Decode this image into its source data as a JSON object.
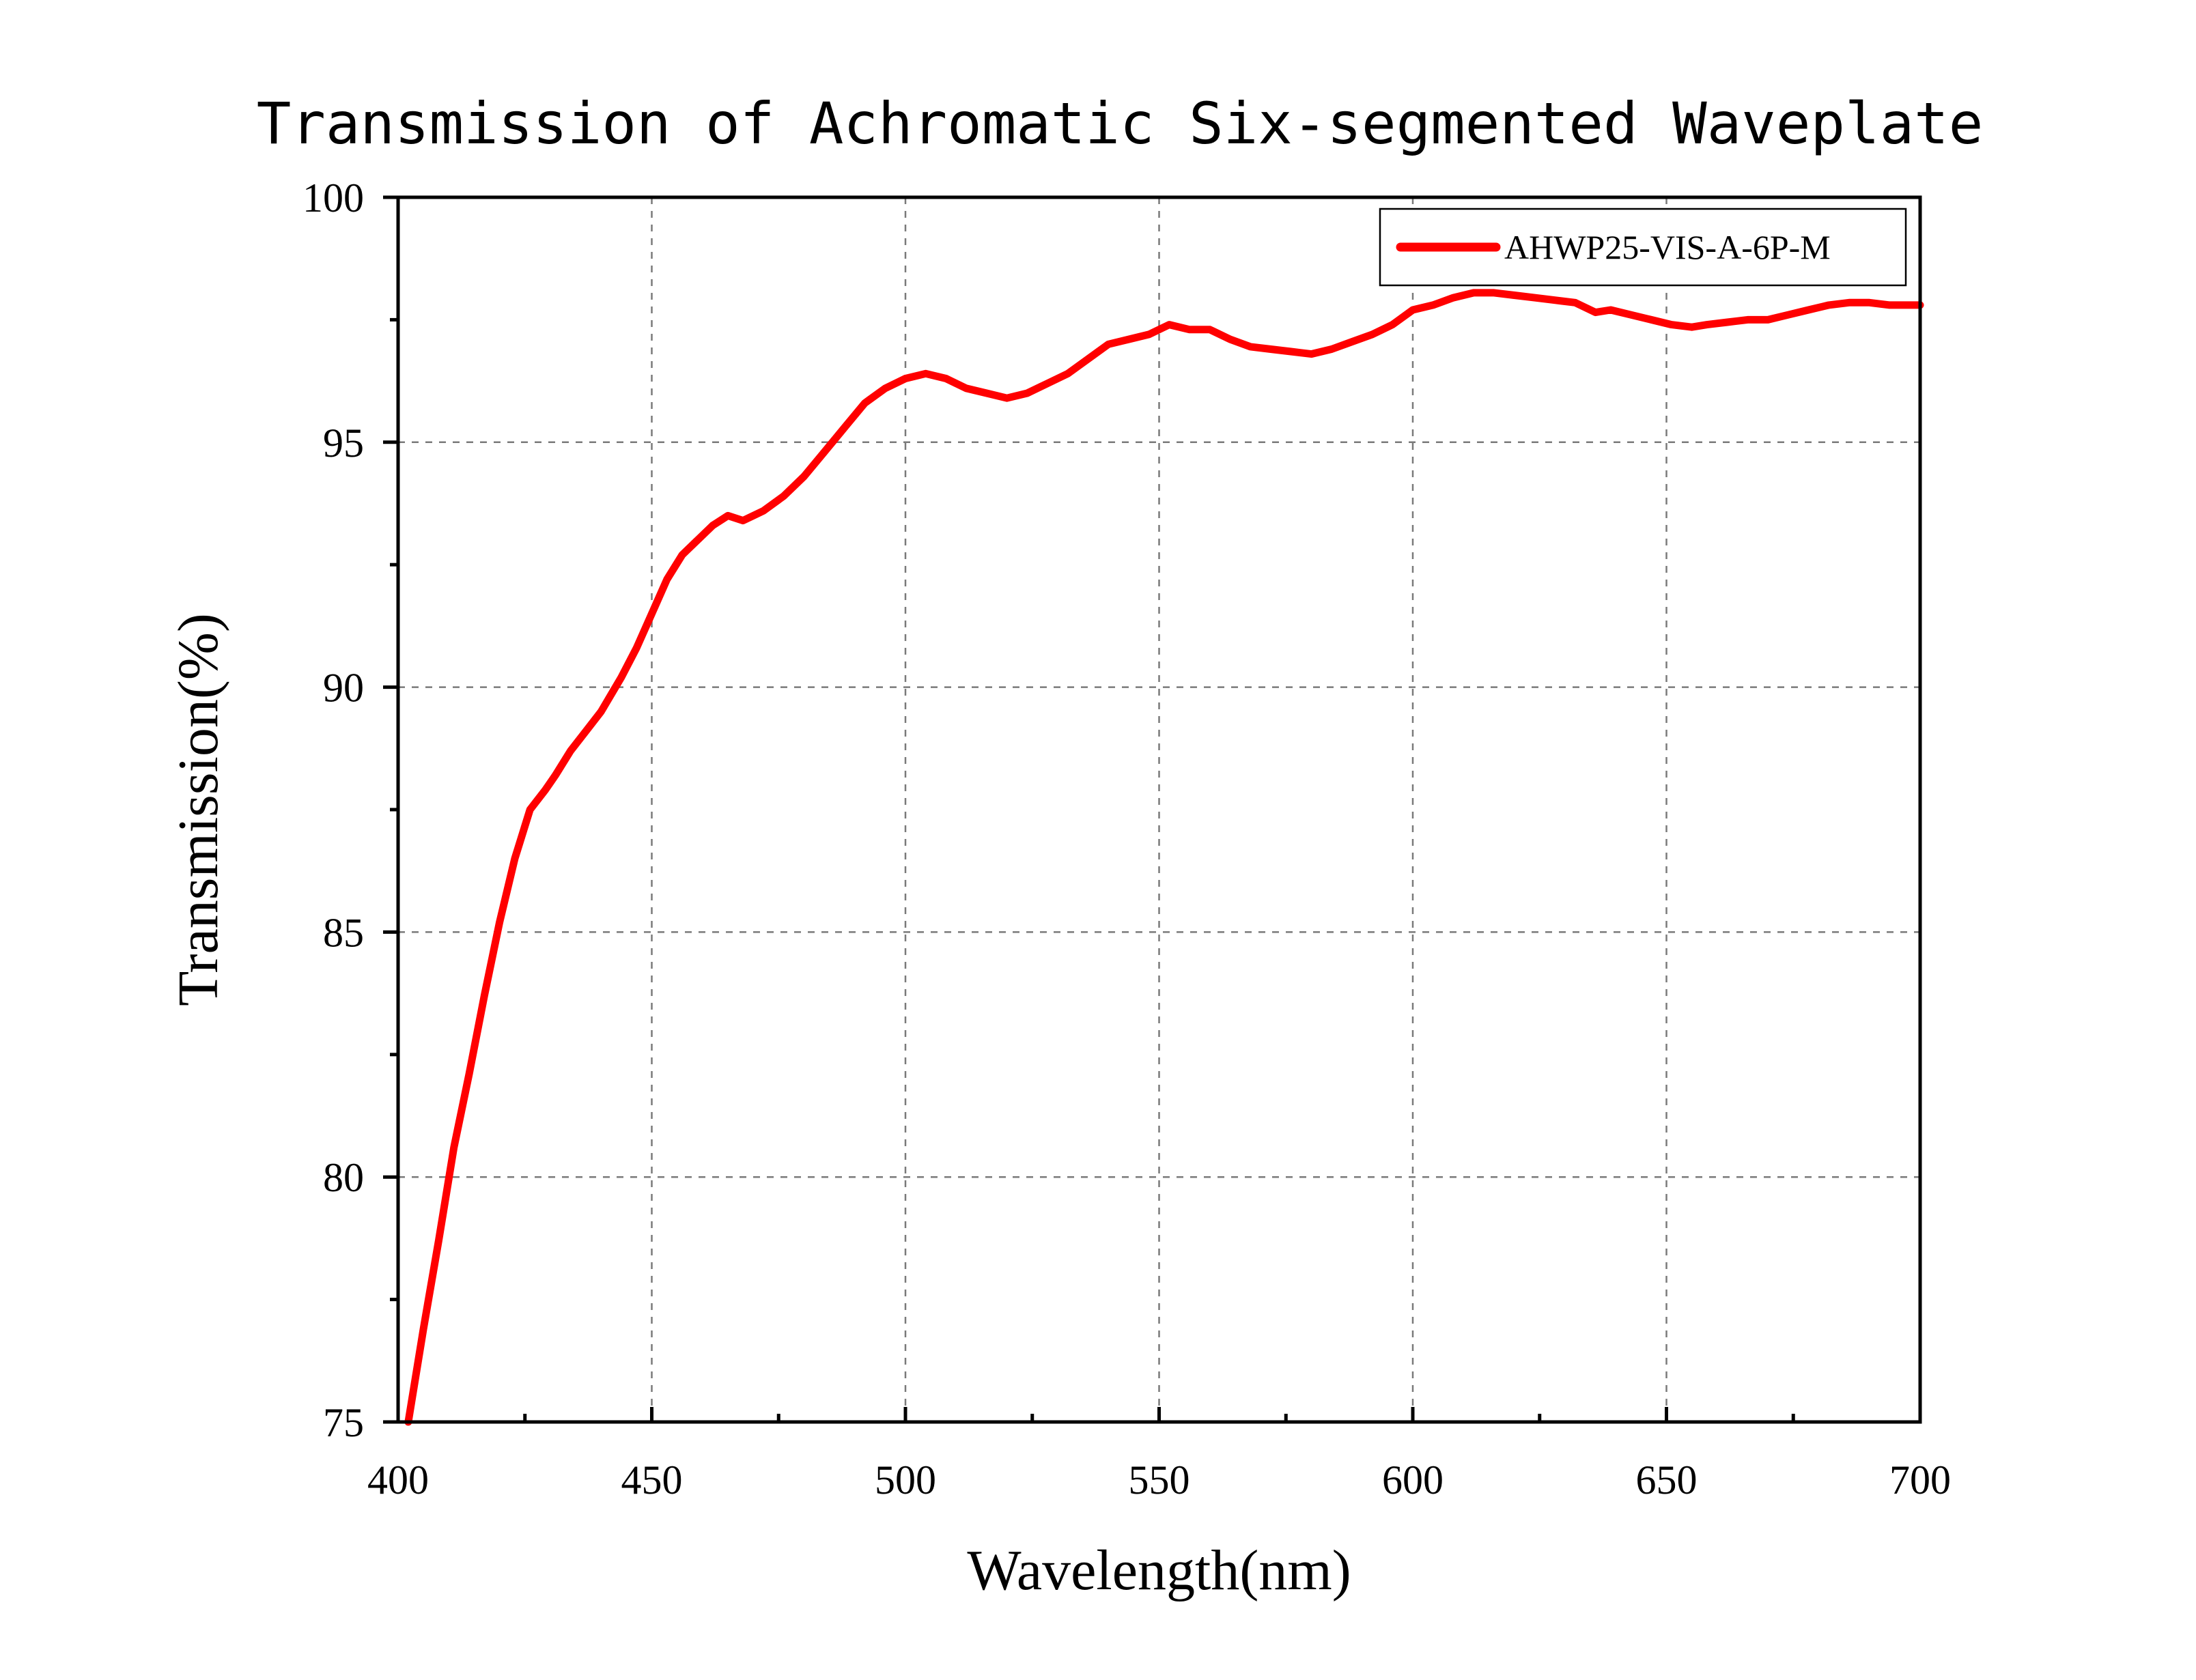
{
  "chart_data": {
    "type": "line",
    "title": "Transmission of Achromatic Six-segmented Waveplate",
    "xlabel": "Wavelength(nm)",
    "ylabel": "Transmission(%)",
    "xlim": [
      400,
      700
    ],
    "ylim": [
      75,
      100
    ],
    "x_ticks": [
      "400",
      "450",
      "500",
      "550",
      "600",
      "650",
      "700"
    ],
    "y_ticks": [
      "75",
      "80",
      "85",
      "90",
      "95",
      "100"
    ],
    "grid": true,
    "legend_position": "top-right",
    "series": [
      {
        "name": "AHWP25-VIS-A-6P-M",
        "color": "#ff0000",
        "x": [
          402,
          405,
          408,
          411,
          414,
          417,
          420,
          423,
          426,
          429,
          431,
          434,
          437,
          440,
          444,
          447,
          450,
          453,
          456,
          459,
          462,
          465,
          468,
          472,
          476,
          480,
          484,
          488,
          492,
          496,
          500,
          504,
          508,
          512,
          516,
          520,
          524,
          528,
          532,
          536,
          540,
          544,
          548,
          552,
          556,
          560,
          564,
          568,
          572,
          576,
          580,
          584,
          588,
          592,
          596,
          600,
          604,
          608,
          612,
          616,
          620,
          624,
          628,
          632,
          636,
          639,
          643,
          647,
          651,
          655,
          658,
          662,
          666,
          670,
          674,
          678,
          682,
          686,
          690,
          694,
          698,
          700
        ],
        "y": [
          75.0,
          76.9,
          78.7,
          80.6,
          82.1,
          83.7,
          85.2,
          86.5,
          87.5,
          87.9,
          88.2,
          88.7,
          89.1,
          89.5,
          90.2,
          90.8,
          91.5,
          92.2,
          92.7,
          93.0,
          93.3,
          93.5,
          93.4,
          93.6,
          93.9,
          94.3,
          94.8,
          95.3,
          95.8,
          96.1,
          96.3,
          96.4,
          96.3,
          96.1,
          96.0,
          95.9,
          96.0,
          96.2,
          96.4,
          96.7,
          97.0,
          97.1,
          97.2,
          97.4,
          97.3,
          97.3,
          97.1,
          96.95,
          96.9,
          96.85,
          96.8,
          96.9,
          97.05,
          97.2,
          97.4,
          97.7,
          97.8,
          97.95,
          98.05,
          98.05,
          98.0,
          97.95,
          97.9,
          97.85,
          97.65,
          97.7,
          97.6,
          97.5,
          97.4,
          97.35,
          97.4,
          97.45,
          97.5,
          97.5,
          97.6,
          97.7,
          97.8,
          97.85,
          97.85,
          97.8,
          97.8,
          97.8
        ]
      }
    ]
  }
}
